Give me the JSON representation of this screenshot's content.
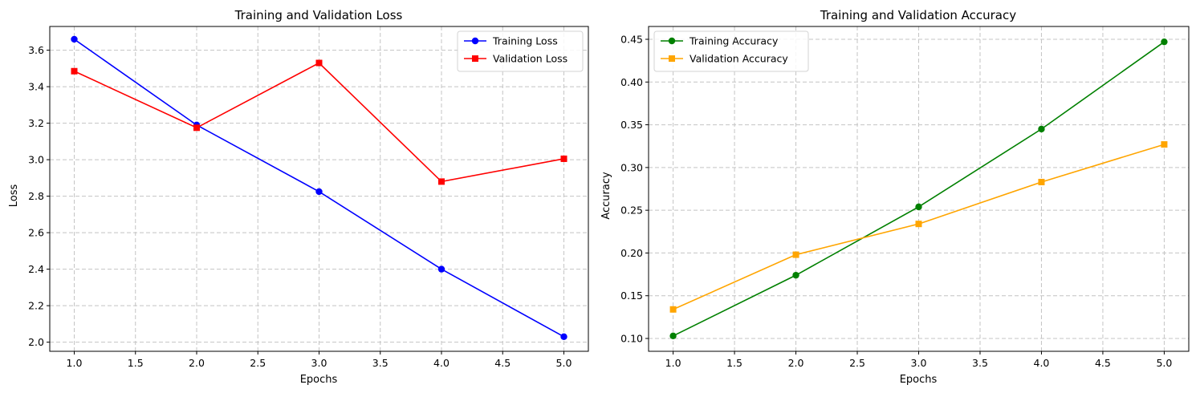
{
  "chart_data": [
    {
      "type": "line",
      "title": "Training and Validation Loss",
      "xlabel": "Epochs",
      "ylabel": "Loss",
      "x": [
        1,
        2,
        3,
        4,
        5
      ],
      "xlim": [
        0.8,
        5.2
      ],
      "ylim": [
        1.95,
        3.73
      ],
      "xticks": [
        "1.0",
        "1.5",
        "2.0",
        "2.5",
        "3.0",
        "3.5",
        "4.0",
        "4.5",
        "5.0"
      ],
      "yticks": [
        "2.0",
        "2.2",
        "2.4",
        "2.6",
        "2.8",
        "3.0",
        "3.2",
        "3.4",
        "3.6"
      ],
      "grid": true,
      "legend_position": "top-right",
      "series": [
        {
          "name": "Training Loss",
          "values": [
            3.66,
            3.19,
            2.825,
            2.4,
            2.03
          ],
          "color": "#0000ff",
          "marker": "circle"
        },
        {
          "name": "Validation Loss",
          "values": [
            3.485,
            3.175,
            3.53,
            2.88,
            3.005
          ],
          "color": "#ff0000",
          "marker": "square"
        }
      ]
    },
    {
      "type": "line",
      "title": "Training and Validation Accuracy",
      "xlabel": "Epochs",
      "ylabel": "Accuracy",
      "x": [
        1,
        2,
        3,
        4,
        5
      ],
      "xlim": [
        0.8,
        5.2
      ],
      "ylim": [
        0.085,
        0.465
      ],
      "xticks": [
        "1.0",
        "1.5",
        "2.0",
        "2.5",
        "3.0",
        "3.5",
        "4.0",
        "4.5",
        "5.0"
      ],
      "yticks": [
        "0.10",
        "0.15",
        "0.20",
        "0.25",
        "0.30",
        "0.35",
        "0.40",
        "0.45"
      ],
      "grid": true,
      "legend_position": "top-left",
      "series": [
        {
          "name": "Training Accuracy",
          "values": [
            0.103,
            0.174,
            0.254,
            0.345,
            0.447
          ],
          "color": "#008000",
          "marker": "circle"
        },
        {
          "name": "Validation Accuracy",
          "values": [
            0.134,
            0.198,
            0.234,
            0.283,
            0.327
          ],
          "color": "#ffa500",
          "marker": "square"
        }
      ]
    }
  ]
}
